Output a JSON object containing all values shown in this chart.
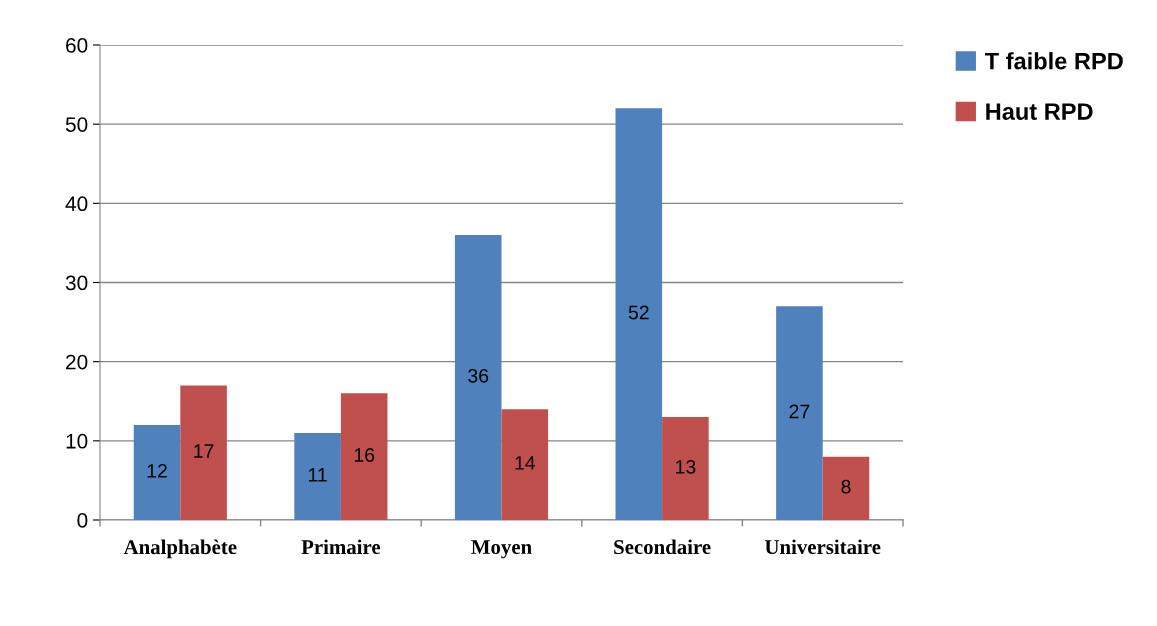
{
  "chart_data": {
    "type": "bar",
    "categories": [
      "Analphabète",
      "Primaire",
      "Moyen",
      "Secondaire",
      "Universitaire"
    ],
    "series": [
      {
        "name": "T faible RPD",
        "color": "#4f81bd",
        "values": [
          12,
          11,
          36,
          52,
          27
        ]
      },
      {
        "name": "Haut RPD",
        "color": "#c0504d",
        "values": [
          17,
          16,
          14,
          13,
          8
        ]
      }
    ],
    "ylim": [
      0,
      60
    ],
    "yticks": [
      0,
      10,
      20,
      30,
      40,
      50,
      60
    ],
    "grid": "y",
    "legend": "top right",
    "data_labels": true
  }
}
